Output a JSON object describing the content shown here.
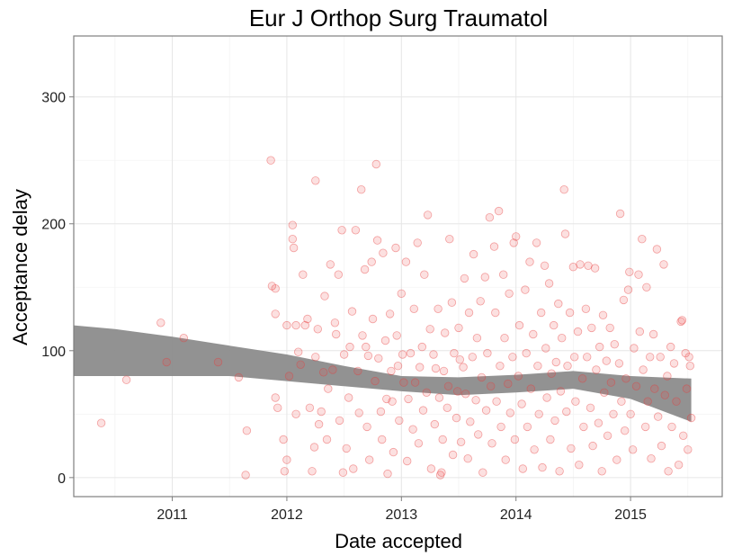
{
  "chart_data": {
    "type": "scatter",
    "title": "Eur J Orthop Surg Traumatol",
    "xlabel": "Date accepted",
    "ylabel": "Acceptance delay",
    "x_ticks": [
      "2011",
      "2012",
      "2013",
      "2014",
      "2015"
    ],
    "y_ticks": [
      0,
      100,
      200,
      300
    ],
    "xlim": [
      2010.14,
      2015.8
    ],
    "ylim": [
      -15,
      348
    ],
    "grid": true,
    "legend": "none",
    "point_color": "#f04646",
    "band_color": "#8c8c8c",
    "smooth_band": {
      "x": [
        2010.14,
        2010.5,
        2011.0,
        2011.5,
        2012.0,
        2012.5,
        2013.0,
        2013.5,
        2014.0,
        2014.5,
        2015.0,
        2015.53
      ],
      "lower": [
        80,
        80,
        80,
        80,
        76,
        72,
        68,
        65,
        67,
        70,
        62,
        44
      ],
      "upper": [
        120,
        117,
        111,
        104,
        97,
        88,
        80,
        79,
        81,
        84,
        80,
        78
      ]
    },
    "points": [
      [
        2010.38,
        43
      ],
      [
        2010.6,
        77
      ],
      [
        2010.9,
        122
      ],
      [
        2010.95,
        91
      ],
      [
        2011.1,
        110
      ],
      [
        2011.4,
        91
      ],
      [
        2011.58,
        79
      ],
      [
        2011.64,
        2
      ],
      [
        2011.65,
        37
      ],
      [
        2011.86,
        250
      ],
      [
        2011.87,
        151
      ],
      [
        2011.9,
        129
      ],
      [
        2011.9,
        149
      ],
      [
        2011.9,
        63
      ],
      [
        2011.92,
        55
      ],
      [
        2011.97,
        30
      ],
      [
        2011.98,
        5
      ],
      [
        2012.0,
        14
      ],
      [
        2012.0,
        120
      ],
      [
        2012.02,
        80
      ],
      [
        2012.05,
        199
      ],
      [
        2012.05,
        188
      ],
      [
        2012.06,
        181
      ],
      [
        2012.08,
        120
      ],
      [
        2012.08,
        50
      ],
      [
        2012.1,
        99
      ],
      [
        2012.12,
        89
      ],
      [
        2012.14,
        160
      ],
      [
        2012.16,
        120
      ],
      [
        2012.18,
        125
      ],
      [
        2012.2,
        55
      ],
      [
        2012.22,
        5
      ],
      [
        2012.24,
        24
      ],
      [
        2012.25,
        234
      ],
      [
        2012.25,
        95
      ],
      [
        2012.27,
        117
      ],
      [
        2012.28,
        42
      ],
      [
        2012.3,
        52
      ],
      [
        2012.32,
        83
      ],
      [
        2012.33,
        143
      ],
      [
        2012.35,
        30
      ],
      [
        2012.36,
        70
      ],
      [
        2012.38,
        168
      ],
      [
        2012.4,
        85
      ],
      [
        2012.42,
        122
      ],
      [
        2012.43,
        113
      ],
      [
        2012.45,
        160
      ],
      [
        2012.46,
        45
      ],
      [
        2012.48,
        195
      ],
      [
        2012.49,
        4
      ],
      [
        2012.5,
        97
      ],
      [
        2012.52,
        23
      ],
      [
        2012.54,
        63
      ],
      [
        2012.55,
        103
      ],
      [
        2012.57,
        131
      ],
      [
        2012.58,
        7
      ],
      [
        2012.6,
        195
      ],
      [
        2012.62,
        84
      ],
      [
        2012.63,
        51
      ],
      [
        2012.65,
        227
      ],
      [
        2012.66,
        112
      ],
      [
        2012.68,
        164
      ],
      [
        2012.69,
        103
      ],
      [
        2012.7,
        40
      ],
      [
        2012.71,
        96
      ],
      [
        2012.72,
        14
      ],
      [
        2012.74,
        170
      ],
      [
        2012.75,
        125
      ],
      [
        2012.77,
        76
      ],
      [
        2012.78,
        247
      ],
      [
        2012.79,
        187
      ],
      [
        2012.8,
        94
      ],
      [
        2012.82,
        52
      ],
      [
        2012.83,
        30
      ],
      [
        2012.84,
        177
      ],
      [
        2012.86,
        108
      ],
      [
        2012.87,
        62
      ],
      [
        2012.88,
        3
      ],
      [
        2012.9,
        129
      ],
      [
        2012.91,
        84
      ],
      [
        2012.92,
        60
      ],
      [
        2012.93,
        20
      ],
      [
        2012.95,
        181
      ],
      [
        2012.96,
        112
      ],
      [
        2012.97,
        88
      ],
      [
        2012.98,
        45
      ],
      [
        2013.0,
        145
      ],
      [
        2013.01,
        97
      ],
      [
        2013.02,
        75
      ],
      [
        2013.04,
        170
      ],
      [
        2013.05,
        13
      ],
      [
        2013.06,
        62
      ],
      [
        2013.08,
        98
      ],
      [
        2013.1,
        38
      ],
      [
        2013.11,
        133
      ],
      [
        2013.12,
        75
      ],
      [
        2013.14,
        185
      ],
      [
        2013.15,
        27
      ],
      [
        2013.16,
        87
      ],
      [
        2013.18,
        103
      ],
      [
        2013.19,
        53
      ],
      [
        2013.2,
        160
      ],
      [
        2013.22,
        67
      ],
      [
        2013.23,
        207
      ],
      [
        2013.25,
        117
      ],
      [
        2013.26,
        7
      ],
      [
        2013.28,
        97
      ],
      [
        2013.29,
        42
      ],
      [
        2013.3,
        86
      ],
      [
        2013.32,
        133
      ],
      [
        2013.33,
        63
      ],
      [
        2013.34,
        2
      ],
      [
        2013.35,
        4
      ],
      [
        2013.36,
        30
      ],
      [
        2013.37,
        84
      ],
      [
        2013.38,
        114
      ],
      [
        2013.4,
        55
      ],
      [
        2013.41,
        72
      ],
      [
        2013.42,
        188
      ],
      [
        2013.44,
        138
      ],
      [
        2013.45,
        18
      ],
      [
        2013.46,
        98
      ],
      [
        2013.48,
        47
      ],
      [
        2013.49,
        68
      ],
      [
        2013.5,
        118
      ],
      [
        2013.51,
        93
      ],
      [
        2013.52,
        28
      ],
      [
        2013.54,
        87
      ],
      [
        2013.55,
        157
      ],
      [
        2013.56,
        66
      ],
      [
        2013.58,
        15
      ],
      [
        2013.59,
        130
      ],
      [
        2013.6,
        44
      ],
      [
        2013.62,
        95
      ],
      [
        2013.63,
        176
      ],
      [
        2013.65,
        61
      ],
      [
        2013.66,
        110
      ],
      [
        2013.67,
        34
      ],
      [
        2013.69,
        139
      ],
      [
        2013.7,
        79
      ],
      [
        2013.71,
        4
      ],
      [
        2013.73,
        158
      ],
      [
        2013.74,
        53
      ],
      [
        2013.75,
        98
      ],
      [
        2013.77,
        205
      ],
      [
        2013.78,
        72
      ],
      [
        2013.79,
        27
      ],
      [
        2013.81,
        182
      ],
      [
        2013.82,
        130
      ],
      [
        2013.83,
        60
      ],
      [
        2013.85,
        210
      ],
      [
        2013.86,
        88
      ],
      [
        2013.87,
        40
      ],
      [
        2013.89,
        160
      ],
      [
        2013.9,
        110
      ],
      [
        2013.91,
        14
      ],
      [
        2013.93,
        74
      ],
      [
        2013.94,
        145
      ],
      [
        2013.95,
        51
      ],
      [
        2013.97,
        95
      ],
      [
        2013.98,
        185
      ],
      [
        2013.99,
        30
      ],
      [
        2014.0,
        190
      ],
      [
        2014.02,
        80
      ],
      [
        2014.03,
        120
      ],
      [
        2014.05,
        58
      ],
      [
        2014.06,
        7
      ],
      [
        2014.08,
        148
      ],
      [
        2014.09,
        98
      ],
      [
        2014.1,
        40
      ],
      [
        2014.12,
        170
      ],
      [
        2014.13,
        70
      ],
      [
        2014.15,
        113
      ],
      [
        2014.16,
        22
      ],
      [
        2014.18,
        185
      ],
      [
        2014.19,
        88
      ],
      [
        2014.2,
        50
      ],
      [
        2014.22,
        130
      ],
      [
        2014.23,
        8
      ],
      [
        2014.25,
        167
      ],
      [
        2014.26,
        102
      ],
      [
        2014.27,
        63
      ],
      [
        2014.29,
        153
      ],
      [
        2014.3,
        30
      ],
      [
        2014.31,
        82
      ],
      [
        2014.33,
        120
      ],
      [
        2014.34,
        45
      ],
      [
        2014.35,
        91
      ],
      [
        2014.37,
        137
      ],
      [
        2014.38,
        5
      ],
      [
        2014.39,
        68
      ],
      [
        2014.4,
        110
      ],
      [
        2014.42,
        227
      ],
      [
        2014.43,
        192
      ],
      [
        2014.44,
        52
      ],
      [
        2014.45,
        88
      ],
      [
        2014.47,
        130
      ],
      [
        2014.48,
        23
      ],
      [
        2014.5,
        166
      ],
      [
        2014.51,
        95
      ],
      [
        2014.52,
        60
      ],
      [
        2014.54,
        115
      ],
      [
        2014.55,
        10
      ],
      [
        2014.56,
        168
      ],
      [
        2014.58,
        78
      ],
      [
        2014.59,
        40
      ],
      [
        2014.61,
        133
      ],
      [
        2014.62,
        95
      ],
      [
        2014.63,
        167
      ],
      [
        2014.65,
        55
      ],
      [
        2014.66,
        118
      ],
      [
        2014.67,
        25
      ],
      [
        2014.69,
        165
      ],
      [
        2014.7,
        85
      ],
      [
        2014.72,
        43
      ],
      [
        2014.73,
        103
      ],
      [
        2014.75,
        5
      ],
      [
        2014.76,
        128
      ],
      [
        2014.77,
        67
      ],
      [
        2014.79,
        92
      ],
      [
        2014.8,
        33
      ],
      [
        2014.82,
        118
      ],
      [
        2014.83,
        75
      ],
      [
        2014.85,
        50
      ],
      [
        2014.86,
        105
      ],
      [
        2014.88,
        14
      ],
      [
        2014.9,
        90
      ],
      [
        2014.91,
        208
      ],
      [
        2014.92,
        60
      ],
      [
        2014.94,
        140
      ],
      [
        2014.95,
        37
      ],
      [
        2014.96,
        78
      ],
      [
        2014.98,
        148
      ],
      [
        2014.99,
        162
      ],
      [
        2015.0,
        50
      ],
      [
        2015.02,
        22
      ],
      [
        2015.03,
        102
      ],
      [
        2015.05,
        72
      ],
      [
        2015.07,
        160
      ],
      [
        2015.08,
        115
      ],
      [
        2015.1,
        188
      ],
      [
        2015.11,
        85
      ],
      [
        2015.13,
        40
      ],
      [
        2015.14,
        150
      ],
      [
        2015.15,
        60
      ],
      [
        2015.17,
        95
      ],
      [
        2015.18,
        15
      ],
      [
        2015.2,
        113
      ],
      [
        2015.21,
        70
      ],
      [
        2015.23,
        180
      ],
      [
        2015.24,
        48
      ],
      [
        2015.26,
        95
      ],
      [
        2015.27,
        25
      ],
      [
        2015.29,
        168
      ],
      [
        2015.3,
        65
      ],
      [
        2015.32,
        80
      ],
      [
        2015.33,
        5
      ],
      [
        2015.35,
        103
      ],
      [
        2015.36,
        40
      ],
      [
        2015.38,
        90
      ],
      [
        2015.4,
        60
      ],
      [
        2015.42,
        10
      ],
      [
        2015.44,
        123
      ],
      [
        2015.45,
        124
      ],
      [
        2015.46,
        33
      ],
      [
        2015.48,
        98
      ],
      [
        2015.49,
        70
      ],
      [
        2015.5,
        22
      ],
      [
        2015.51,
        95
      ],
      [
        2015.52,
        88
      ],
      [
        2015.53,
        47
      ]
    ]
  }
}
